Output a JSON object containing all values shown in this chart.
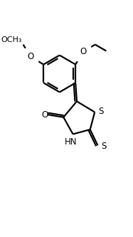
{
  "bg_color": "#ffffff",
  "line_color": "#000000",
  "line_width": 1.6,
  "font_size": 8.5,
  "figsize": [
    1.87,
    3.33
  ],
  "dpi": 100,
  "xlim": [
    -0.5,
    4.0
  ],
  "ylim": [
    -4.2,
    2.8
  ]
}
